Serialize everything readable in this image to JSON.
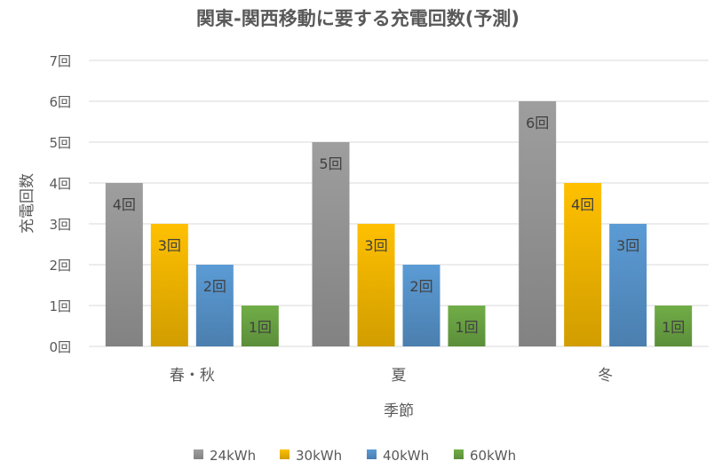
{
  "chart_data": {
    "type": "bar",
    "title": "関東-関西移動に要する充電回数(予測)",
    "xlabel": "季節",
    "ylabel": "充電回数",
    "categories": [
      "春・秋",
      "夏",
      "冬"
    ],
    "series": [
      {
        "name": "24kWh",
        "values": [
          4,
          5,
          6
        ],
        "labels": [
          "4回",
          "5回",
          "6回"
        ],
        "color": "#9e9e9e"
      },
      {
        "name": "30kWh",
        "values": [
          3,
          3,
          4
        ],
        "labels": [
          "3回",
          "3回",
          "4回"
        ],
        "color": "#ffc000"
      },
      {
        "name": "40kWh",
        "values": [
          2,
          2,
          3
        ],
        "labels": [
          "2回",
          "2回",
          "3回"
        ],
        "color": "#5b9bd5"
      },
      {
        "name": "60kWh",
        "values": [
          1,
          1,
          1
        ],
        "labels": [
          "1回",
          "1回",
          "1回"
        ],
        "color": "#70ad47"
      }
    ],
    "ylim": [
      0,
      7
    ],
    "yticks": [
      0,
      1,
      2,
      3,
      4,
      5,
      6,
      7
    ],
    "ytick_labels": [
      "0回",
      "1回",
      "2回",
      "3回",
      "4回",
      "5回",
      "6回",
      "7回"
    ],
    "grid": true,
    "legend_position": "bottom"
  }
}
